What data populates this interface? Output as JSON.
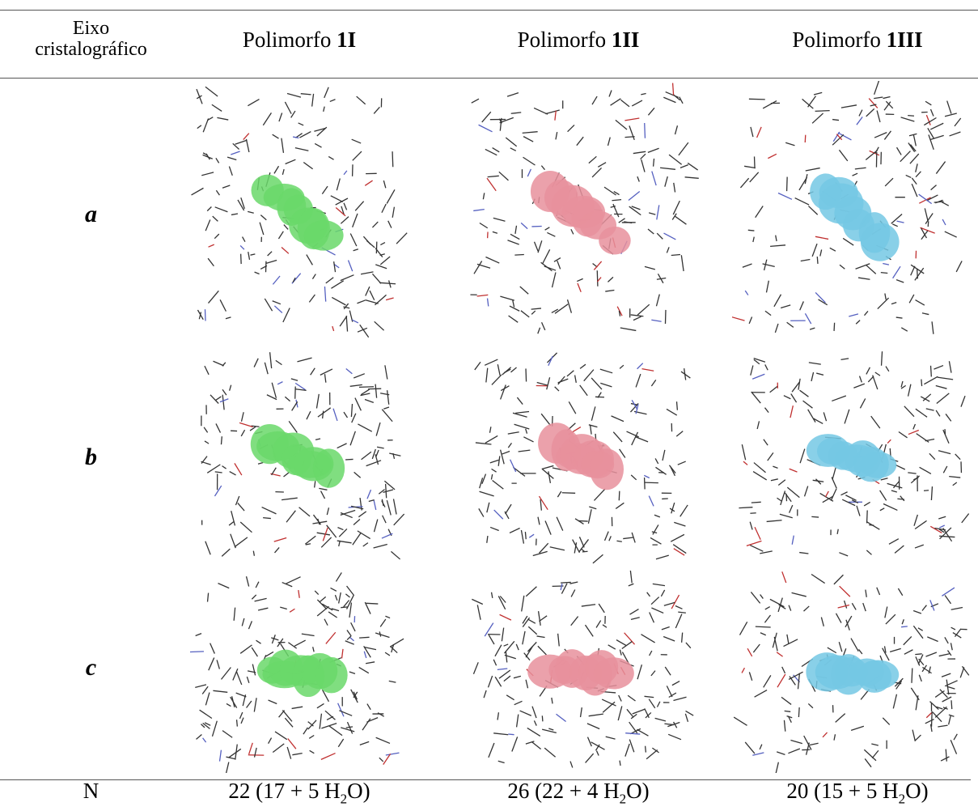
{
  "table": {
    "header": [
      {
        "line1": "Eixo",
        "line2": "cristalográfico"
      },
      {
        "text": "Polimorfo",
        "bold": "1I"
      },
      {
        "text": "Polimorfo",
        "bold": "1II"
      },
      {
        "text": "Polimorfo",
        "bold": "1III"
      }
    ],
    "rows": [
      "a",
      "b",
      "c"
    ],
    "footer": {
      "label": "N",
      "cells": [
        {
          "prefix": "22 (17 + 5 H",
          "sub": "2",
          "suffix": "O)"
        },
        {
          "prefix": "26 (22 + 4 H",
          "sub": "2",
          "suffix": "O)"
        },
        {
          "prefix": "20 (15 + 5 H",
          "sub": "2",
          "suffix": "O)"
        }
      ]
    }
  }
}
